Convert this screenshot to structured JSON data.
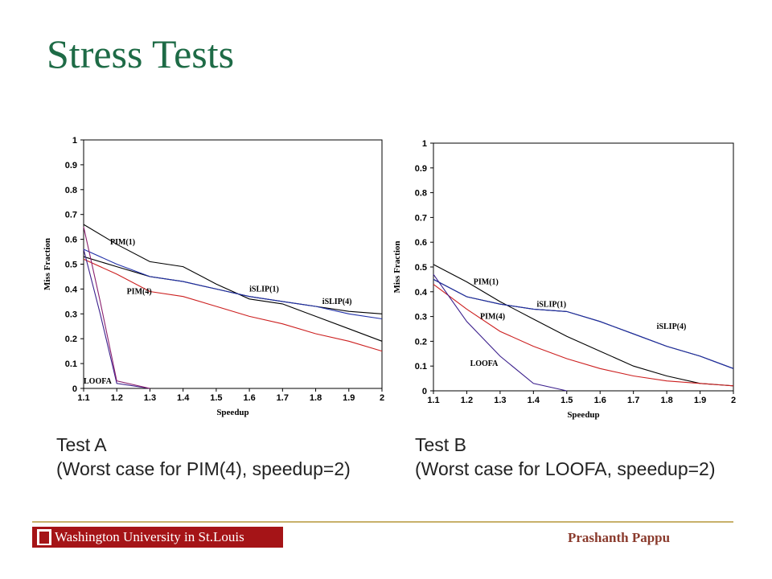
{
  "slide": {
    "title": "Stress Tests"
  },
  "captions": [
    {
      "line1": "Test A",
      "line2": "(Worst case for PIM(4), speedup=2)"
    },
    {
      "line1": "Test B",
      "line2": "(Worst case for LOOFA, speedup=2)"
    }
  ],
  "footer": {
    "logo_text": "Washington University in St.Louis",
    "author": "Prashanth Pappu"
  },
  "chart_data": [
    {
      "type": "line",
      "title": "",
      "xlabel": "Speedup",
      "ylabel": "Miss Fraction",
      "xlim": [
        1.1,
        2
      ],
      "ylim": [
        0,
        1
      ],
      "x_ticks": [
        "1.1",
        "1.2",
        "1.3",
        "1.4",
        "1.5",
        "1.6",
        "1.7",
        "1.8",
        "1.9",
        "2"
      ],
      "y_ticks": [
        "0",
        "0.1",
        "0.2",
        "0.3",
        "0.4",
        "0.5",
        "0.6",
        "0.7",
        "0.8",
        "0.9",
        "1"
      ],
      "grid": false,
      "series": [
        {
          "name": "PIM(1)",
          "color": "#000000",
          "x": [
            1.1,
            1.2,
            1.3,
            1.4,
            1.5,
            1.6,
            1.7,
            1.8,
            1.9,
            2.0
          ],
          "y": [
            0.66,
            0.58,
            0.51,
            0.49,
            0.42,
            0.36,
            0.34,
            0.29,
            0.24,
            0.19
          ],
          "label_at": [
            1.18,
            0.58
          ]
        },
        {
          "name": "iSLIP(1)",
          "color": "#000000",
          "x": [
            1.1,
            1.2,
            1.3,
            1.4,
            1.5,
            1.6,
            1.7,
            1.8,
            1.9,
            2.0
          ],
          "y": [
            0.53,
            0.49,
            0.45,
            0.43,
            0.4,
            0.37,
            0.35,
            0.33,
            0.31,
            0.3
          ],
          "label_at": [
            1.6,
            0.39
          ]
        },
        {
          "name": "iSLIP(4)",
          "color": "#1f2fa8",
          "x": [
            1.1,
            1.2,
            1.3,
            1.4,
            1.5,
            1.6,
            1.7,
            1.8,
            1.9,
            2.0
          ],
          "y": [
            0.56,
            0.5,
            0.45,
            0.43,
            0.4,
            0.37,
            0.35,
            0.33,
            0.3,
            0.28
          ],
          "label_at": [
            1.82,
            0.34
          ]
        },
        {
          "name": "PIM(4)",
          "color": "#cc1f1f",
          "x": [
            1.1,
            1.2,
            1.3,
            1.4,
            1.5,
            1.6,
            1.7,
            1.8,
            1.9,
            2.0
          ],
          "y": [
            0.52,
            0.46,
            0.39,
            0.37,
            0.33,
            0.29,
            0.26,
            0.22,
            0.19,
            0.15
          ],
          "label_at": [
            1.23,
            0.38
          ]
        },
        {
          "name": "LOOFA",
          "color": "#3b1f8c",
          "x": [
            1.1,
            1.15,
            1.2,
            1.3
          ],
          "y": [
            0.56,
            0.3,
            0.02,
            0.0
          ],
          "label_at": [
            1.1,
            0.02
          ]
        },
        {
          "name": "",
          "color": "#8a1f6e",
          "x": [
            1.1,
            1.15,
            1.2,
            1.3
          ],
          "y": [
            0.65,
            0.35,
            0.03,
            0.0
          ]
        }
      ]
    },
    {
      "type": "line",
      "title": "",
      "xlabel": "Speedup",
      "ylabel": "Miss Fraction",
      "xlim": [
        1.1,
        2
      ],
      "ylim": [
        0,
        1
      ],
      "x_ticks": [
        "1.1",
        "1.2",
        "1.3",
        "1.4",
        "1.5",
        "1.6",
        "1.7",
        "1.8",
        "1.9",
        "2"
      ],
      "y_ticks": [
        "0",
        "0.1",
        "0.2",
        "0.3",
        "0.4",
        "0.5",
        "0.6",
        "0.7",
        "0.8",
        "0.9",
        "1"
      ],
      "grid": false,
      "series": [
        {
          "name": "PIM(1)",
          "color": "#000000",
          "x": [
            1.1,
            1.2,
            1.3,
            1.4,
            1.5,
            1.6,
            1.7,
            1.8,
            1.9,
            2.0
          ],
          "y": [
            0.51,
            0.44,
            0.36,
            0.29,
            0.22,
            0.16,
            0.1,
            0.06,
            0.03,
            0.02
          ],
          "label_at": [
            1.22,
            0.43
          ]
        },
        {
          "name": "iSLIP(1)",
          "color": "#000000",
          "x": [
            1.1,
            1.2,
            1.3,
            1.4,
            1.5,
            1.6,
            1.7,
            1.8,
            1.9,
            2.0
          ],
          "y": [
            0.45,
            0.38,
            0.35,
            0.33,
            0.32,
            0.28,
            0.23,
            0.18,
            0.14,
            0.09
          ],
          "label_at": [
            1.41,
            0.34
          ]
        },
        {
          "name": "iSLIP(4)",
          "color": "#1f2fa8",
          "x": [
            1.1,
            1.2,
            1.3,
            1.4,
            1.5,
            1.6,
            1.7,
            1.8,
            1.9,
            2.0
          ],
          "y": [
            0.45,
            0.38,
            0.35,
            0.33,
            0.32,
            0.28,
            0.23,
            0.18,
            0.14,
            0.09
          ],
          "label_at": [
            1.77,
            0.25
          ]
        },
        {
          "name": "PIM(4)",
          "color": "#cc1f1f",
          "x": [
            1.1,
            1.2,
            1.3,
            1.4,
            1.5,
            1.6,
            1.7,
            1.8,
            1.9,
            2.0
          ],
          "y": [
            0.43,
            0.33,
            0.24,
            0.18,
            0.13,
            0.09,
            0.06,
            0.04,
            0.03,
            0.02
          ],
          "label_at": [
            1.24,
            0.29
          ]
        },
        {
          "name": "LOOFA",
          "color": "#3b1f8c",
          "x": [
            1.1,
            1.2,
            1.3,
            1.4,
            1.5
          ],
          "y": [
            0.47,
            0.28,
            0.14,
            0.03,
            0.0
          ],
          "label_at": [
            1.21,
            0.1
          ]
        }
      ]
    }
  ]
}
